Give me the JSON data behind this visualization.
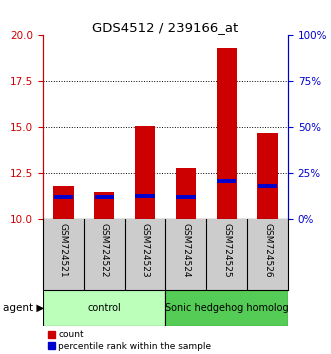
{
  "title": "GDS4512 / 239166_at",
  "categories": [
    "GSM724521",
    "GSM724522",
    "GSM724523",
    "GSM724524",
    "GSM724525",
    "GSM724526"
  ],
  "count_values": [
    11.8,
    11.5,
    15.1,
    12.8,
    19.3,
    14.7
  ],
  "percentile_values": [
    11.2,
    11.2,
    11.3,
    11.2,
    12.1,
    11.8
  ],
  "y_min": 10,
  "y_max": 20,
  "yticks_left": [
    10,
    12.5,
    15,
    17.5,
    20
  ],
  "yticks_right": [
    0,
    25,
    50,
    75,
    100
  ],
  "left_axis_color": "#cc0000",
  "right_axis_color": "#0000cc",
  "bar_color": "#cc0000",
  "blue_color": "#0000cc",
  "groups": [
    {
      "label": "control",
      "start": 0,
      "end": 3,
      "color": "#bbffbb"
    },
    {
      "label": "Sonic hedgehog homolog",
      "start": 3,
      "end": 6,
      "color": "#55cc55"
    }
  ],
  "sample_box_color": "#cccccc",
  "agent_label": "agent",
  "legend_count": "count",
  "legend_pct": "percentile rank within the sample",
  "dotted_yticks": [
    12.5,
    15,
    17.5
  ],
  "bar_width": 0.5
}
